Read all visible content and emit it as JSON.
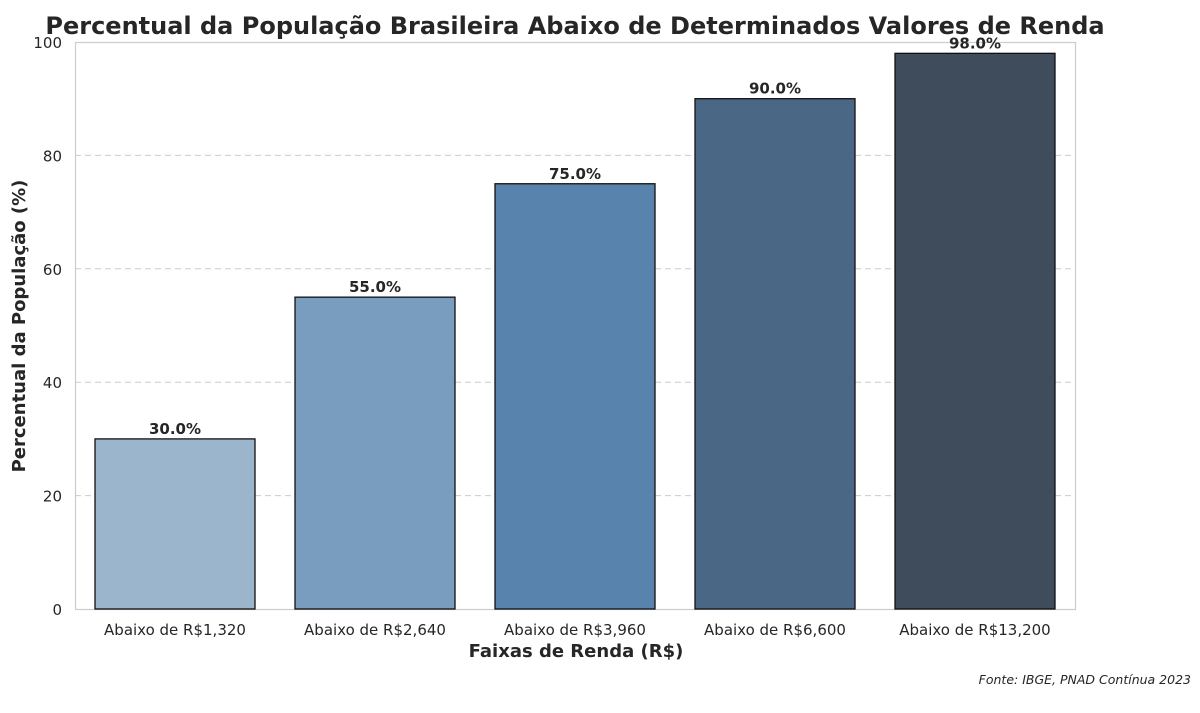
{
  "chart_data": {
    "type": "bar",
    "title": "Percentual da População Brasileira Abaixo de Determinados Valores de Renda",
    "xlabel": "Faixas de Renda (R$)",
    "ylabel": "Percentual da População (%)",
    "categories": [
      "Abaixo de R$1,320",
      "Abaixo de R$2,640",
      "Abaixo de R$3,960",
      "Abaixo de R$6,600",
      "Abaixo de R$13,200"
    ],
    "values": [
      30.0,
      55.0,
      75.0,
      90.0,
      98.0
    ],
    "data_labels": [
      "30.0%",
      "55.0%",
      "75.0%",
      "90.0%",
      "98.0%"
    ],
    "colors": [
      "#9ab5cc",
      "#789dbf",
      "#5783ad",
      "#4a6886",
      "#3e4c5b"
    ],
    "ylim": [
      0,
      100
    ],
    "yticks": [
      0,
      20,
      40,
      60,
      80,
      100
    ],
    "grid": "horizontal dashed",
    "legend": "none",
    "source": "Fonte: IBGE, PNAD Contínua 2023"
  }
}
